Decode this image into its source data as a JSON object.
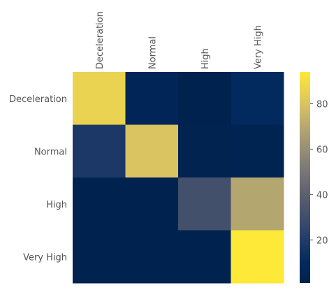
{
  "chart_data": {
    "type": "heatmap",
    "colormap": "cividis",
    "x_categories": [
      "Deceleration",
      "Normal",
      "High",
      "Very High"
    ],
    "y_categories": [
      "Deceleration",
      "Normal",
      "High",
      "Very High"
    ],
    "values": [
      [
        86,
        5,
        1,
        10
      ],
      [
        18,
        80,
        2,
        3
      ],
      [
        1,
        1,
        31,
        69
      ],
      [
        1,
        1,
        1,
        94
      ]
    ],
    "colorbar": {
      "range": [
        1,
        94
      ],
      "ticks": [
        20,
        40,
        60,
        80
      ]
    },
    "title": "",
    "xlabel": "",
    "ylabel": "",
    "grid": false
  }
}
